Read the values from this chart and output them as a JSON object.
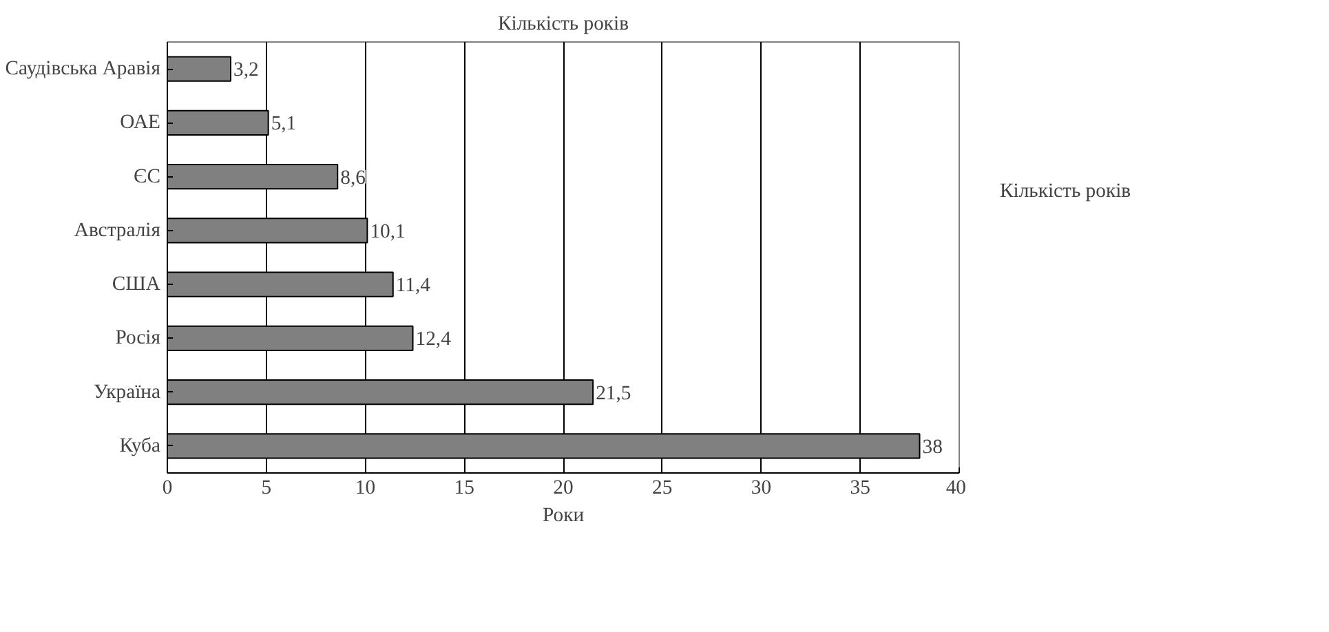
{
  "chart_data": {
    "type": "bar",
    "orientation": "horizontal",
    "title": "Кількість років",
    "xlabel": "Роки",
    "categories": [
      "Саудівська Аравія",
      "ОАЕ",
      "ЄС",
      "Австралія",
      "США",
      "Росія",
      "Україна",
      "Куба"
    ],
    "series": [
      {
        "name": "Кількість років",
        "color": "#808080",
        "values": [
          3.2,
          5.1,
          8.6,
          10.1,
          11.4,
          12.4,
          21.5,
          38
        ],
        "value_labels": [
          "3,2",
          "5,1",
          "8,6",
          "10,1",
          "11,4",
          "12,4",
          "21,5",
          "38"
        ]
      }
    ],
    "xlim": [
      0,
      40
    ],
    "xticks": [
      0,
      5,
      10,
      15,
      20,
      25,
      30,
      35,
      40
    ],
    "grid": "x",
    "legend": "right"
  }
}
